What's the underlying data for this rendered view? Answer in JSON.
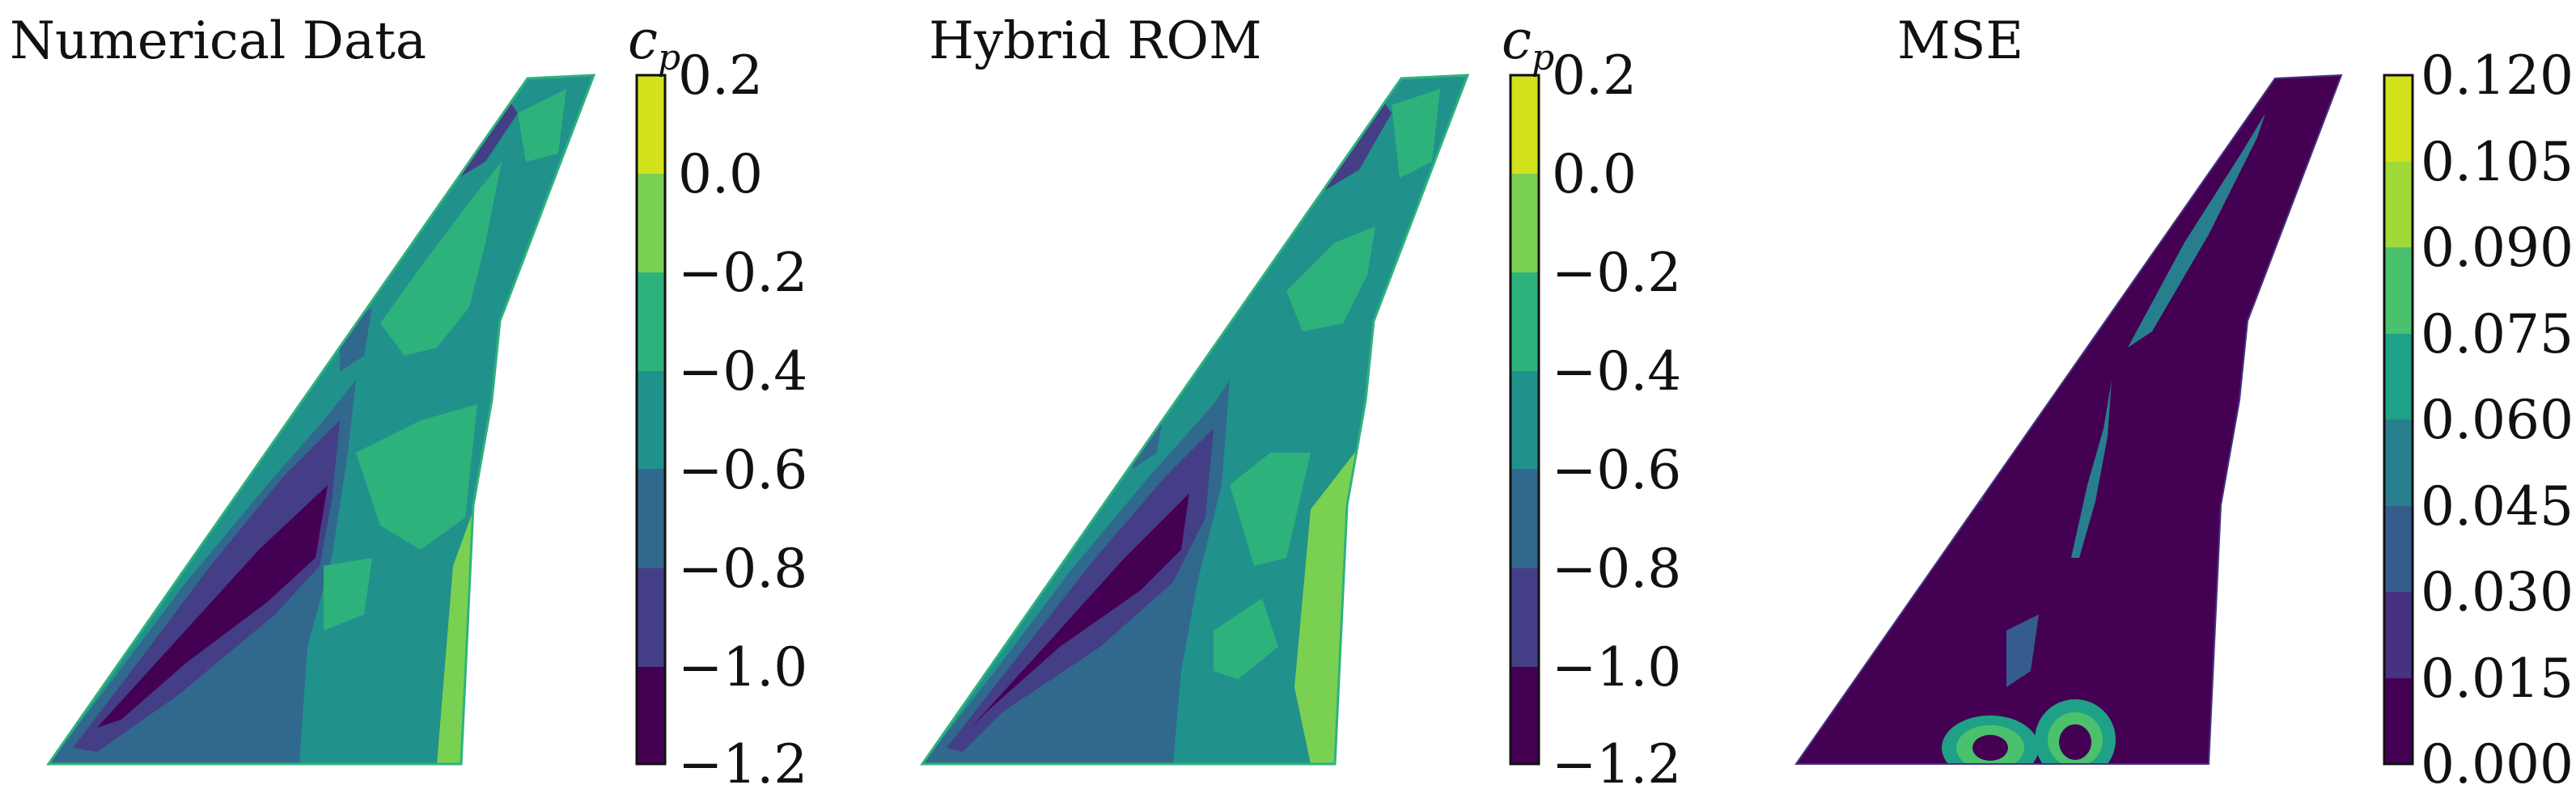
{
  "chart_data": [
    {
      "type": "heatmap",
      "title": "Numerical Data",
      "colorbar": {
        "label_main": "c",
        "label_sub": "p",
        "ticks": [
          "0.2",
          "0.0",
          "−0.2",
          "−0.4",
          "−0.6",
          "−0.8",
          "−1.0",
          "−1.2"
        ],
        "range": [
          -1.2,
          0.2
        ],
        "levels": [
          "#440154",
          "#433e85",
          "#31688e",
          "#21918c",
          "#2eb27c",
          "#7ad151",
          "#d2e21b"
        ]
      }
    },
    {
      "type": "heatmap",
      "title": "Hybrid ROM",
      "colorbar": {
        "label_main": "c",
        "label_sub": "p",
        "ticks": [
          "0.2",
          "0.0",
          "−0.2",
          "−0.4",
          "−0.6",
          "−0.8",
          "−1.0",
          "−1.2"
        ],
        "range": [
          -1.2,
          0.2
        ],
        "levels": [
          "#440154",
          "#433e85",
          "#31688e",
          "#21918c",
          "#2eb27c",
          "#7ad151",
          "#d2e21b"
        ]
      }
    },
    {
      "type": "heatmap",
      "title": "MSE",
      "colorbar": {
        "label_main": "",
        "label_sub": "",
        "ticks": [
          "0.120",
          "0.105",
          "0.090",
          "0.075",
          "0.060",
          "0.045",
          "0.030",
          "0.015",
          "0.000"
        ],
        "range": [
          0.0,
          0.12
        ],
        "levels": [
          "#440154",
          "#46327e",
          "#365c8d",
          "#277f8e",
          "#1fa187",
          "#4ac16d",
          "#a0da39",
          "#d2e21b"
        ]
      }
    }
  ]
}
